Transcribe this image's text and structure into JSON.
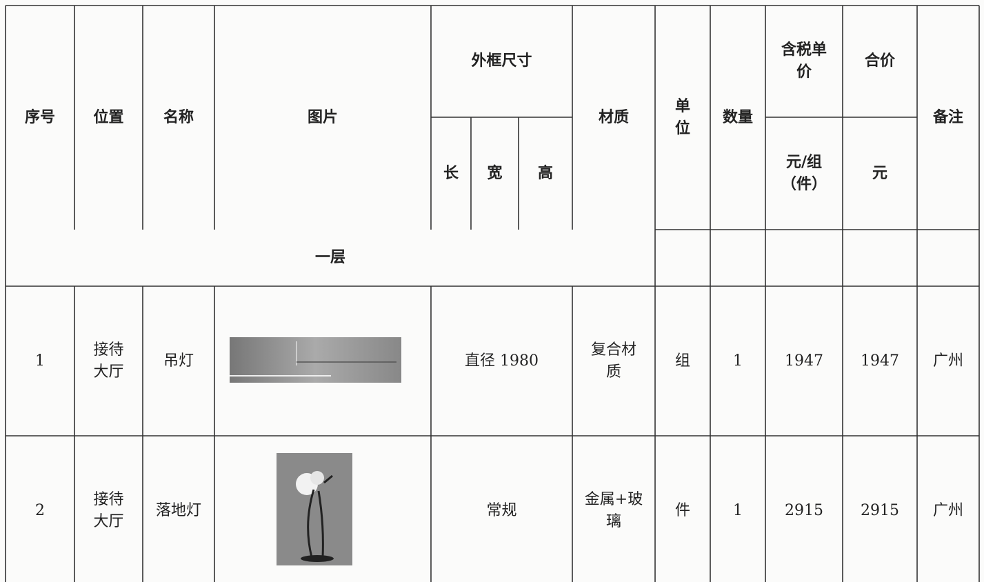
{
  "header": {
    "columns": [
      "序号",
      "位置",
      "名称",
      "图片",
      "外框尺寸",
      "长",
      "宽",
      "高",
      "材质",
      "单位",
      "数量",
      "含税单价",
      "合价",
      "元/组（件）",
      "元",
      "备注"
    ]
  },
  "section": "一层",
  "rows": [
    [
      "1",
      "接待大厅",
      "吊灯",
      "直径 1980",
      "复合材质",
      "组",
      "1",
      "1947",
      "1947",
      "广州"
    ],
    [
      "2",
      "接待大厅",
      "落地灯",
      "常规",
      "金属+玻璃",
      "件",
      "1",
      "2915",
      "2915",
      "广州"
    ]
  ]
}
